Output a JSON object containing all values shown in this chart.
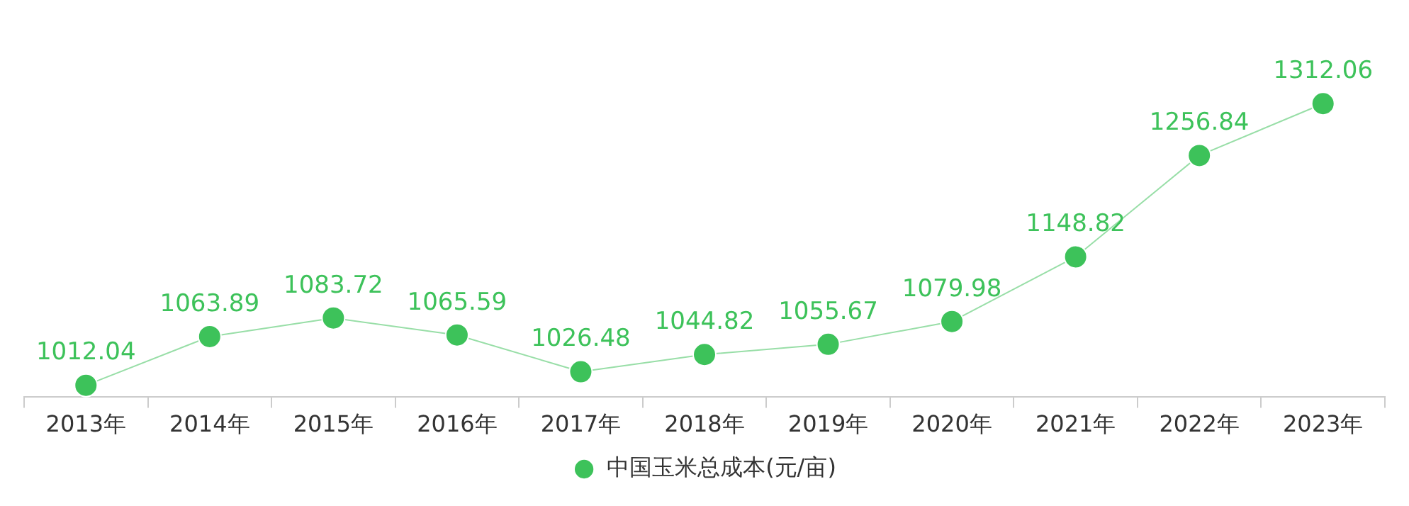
{
  "chart_data": {
    "type": "line",
    "categories": [
      "2013年",
      "2014年",
      "2015年",
      "2016年",
      "2017年",
      "2018年",
      "2019年",
      "2020年",
      "2021年",
      "2022年",
      "2023年"
    ],
    "series": [
      {
        "name": "中国玉米总成本(元/亩)",
        "color": "#3dc25a",
        "values": [
          1012.04,
          1063.89,
          1083.72,
          1065.59,
          1026.48,
          1044.82,
          1055.67,
          1079.98,
          1148.82,
          1256.84,
          1312.06
        ]
      }
    ],
    "data_labels": true,
    "legend": "bottom",
    "grid": false,
    "marker": "circle",
    "line_style": "solid"
  }
}
